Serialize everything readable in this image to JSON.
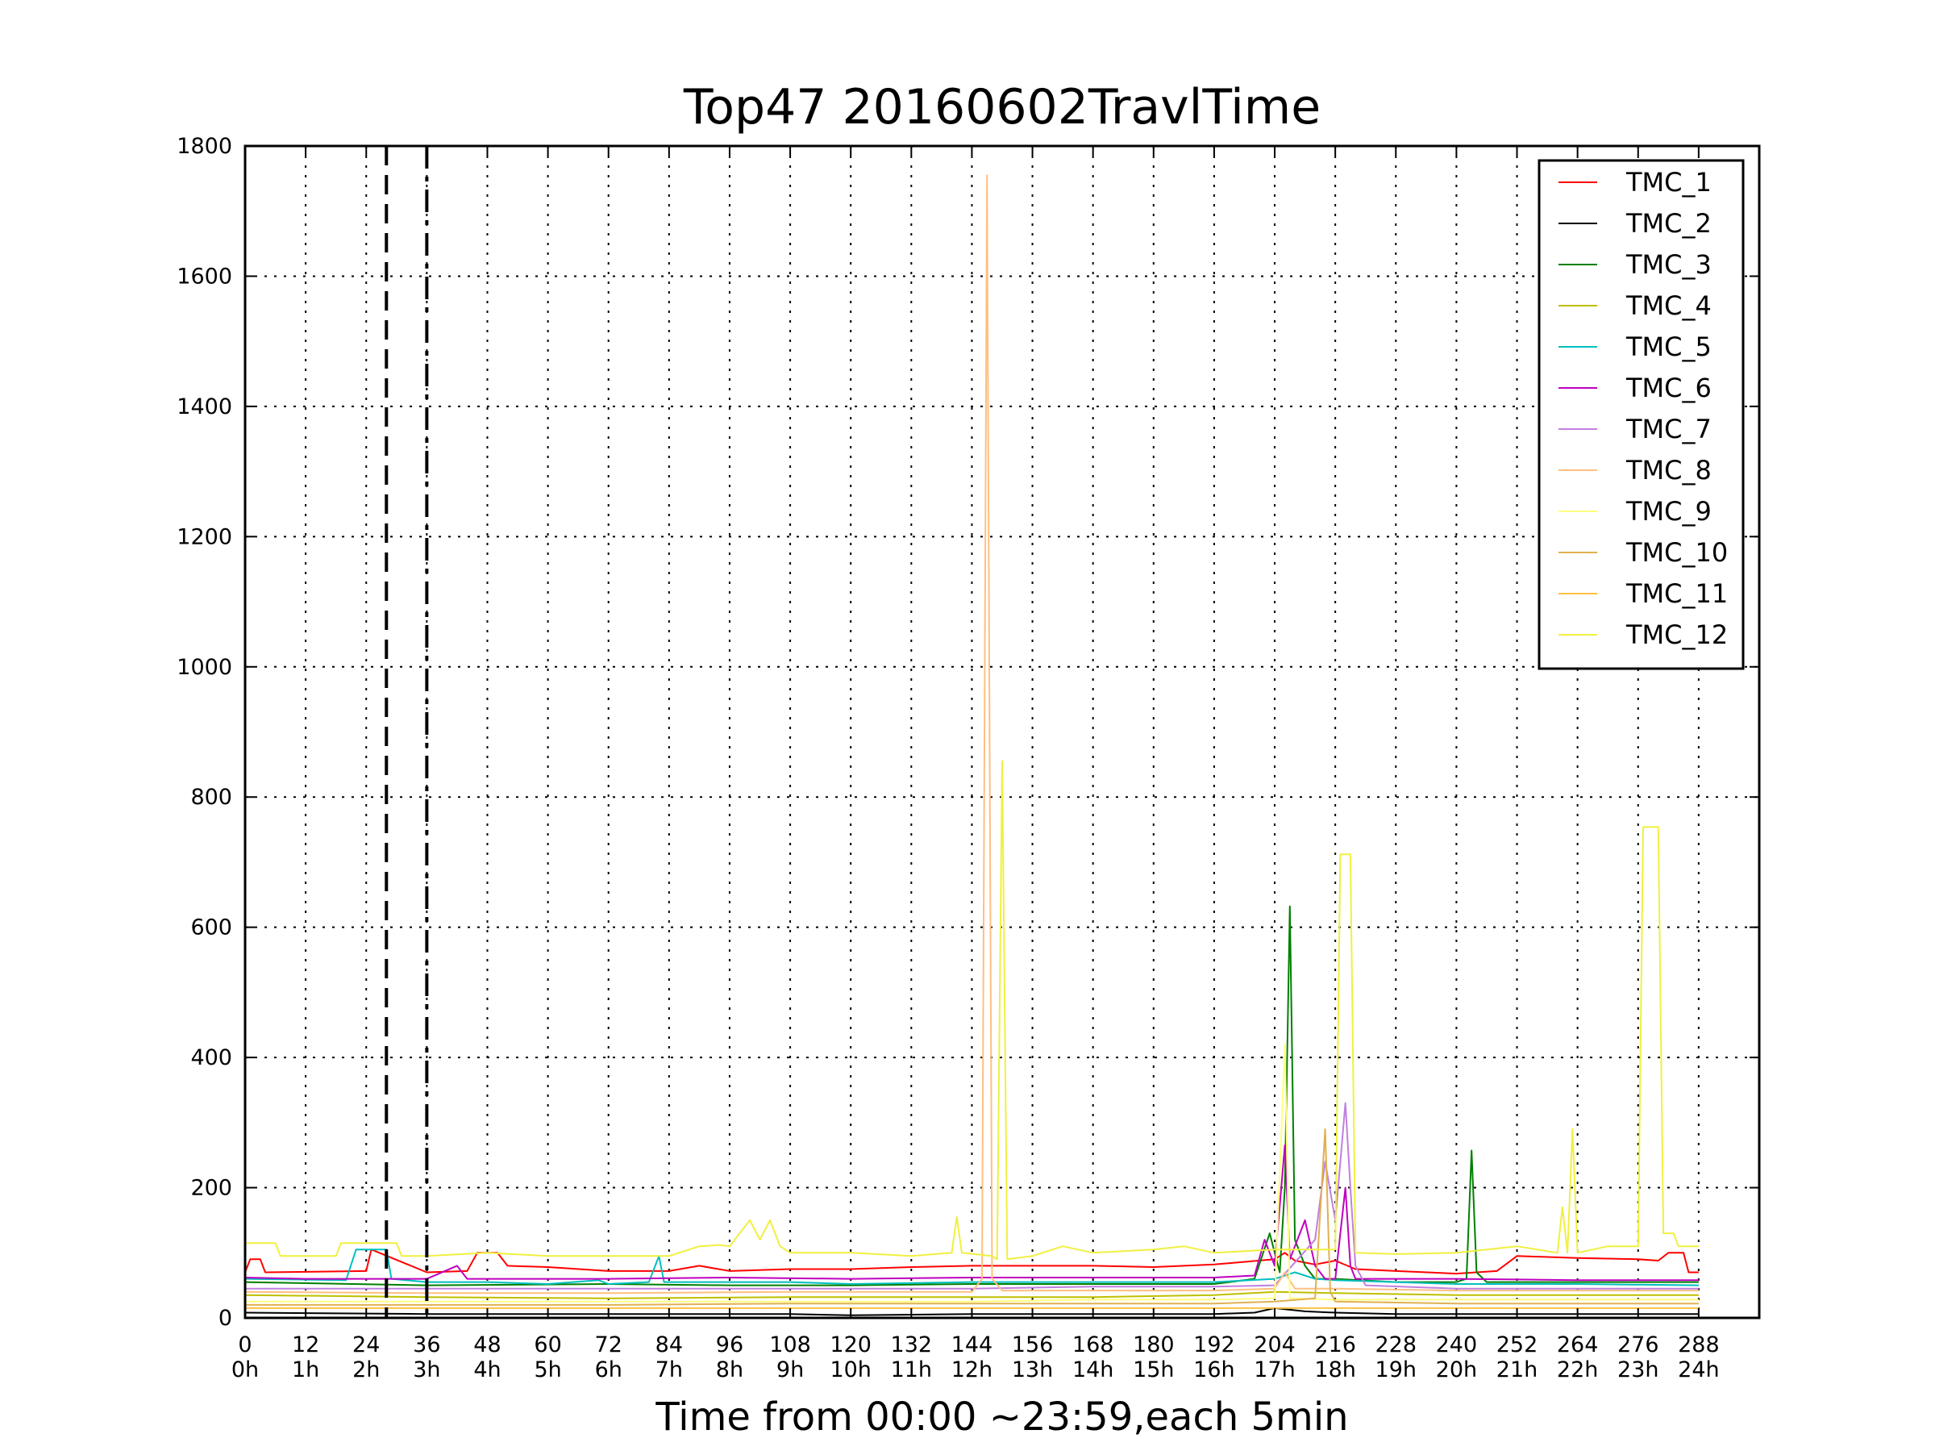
{
  "chart_data": {
    "type": "line",
    "title": "Top47 20160602TravlTime",
    "xlabel": "Time from 00:00 ~23:59,each 5min",
    "ylabel": "",
    "xlim": [
      0,
      300
    ],
    "ylim": [
      0,
      1800
    ],
    "grid": true,
    "legend_position": "top-right",
    "x_ticks": [
      {
        "value": 0,
        "label": "0",
        "sub": "0h"
      },
      {
        "value": 12,
        "label": "12",
        "sub": "1h"
      },
      {
        "value": 24,
        "label": "24",
        "sub": "2h"
      },
      {
        "value": 36,
        "label": "36",
        "sub": "3h"
      },
      {
        "value": 48,
        "label": "48",
        "sub": "4h"
      },
      {
        "value": 60,
        "label": "60",
        "sub": "5h"
      },
      {
        "value": 72,
        "label": "72",
        "sub": "6h"
      },
      {
        "value": 84,
        "label": "84",
        "sub": "7h"
      },
      {
        "value": 96,
        "label": "96",
        "sub": "8h"
      },
      {
        "value": 108,
        "label": "108",
        "sub": "9h"
      },
      {
        "value": 120,
        "label": "120",
        "sub": "10h"
      },
      {
        "value": 132,
        "label": "132",
        "sub": "11h"
      },
      {
        "value": 144,
        "label": "144",
        "sub": "12h"
      },
      {
        "value": 156,
        "label": "156",
        "sub": "13h"
      },
      {
        "value": 168,
        "label": "168",
        "sub": "14h"
      },
      {
        "value": 180,
        "label": "180",
        "sub": "15h"
      },
      {
        "value": 192,
        "label": "192",
        "sub": "16h"
      },
      {
        "value": 204,
        "label": "204",
        "sub": "17h"
      },
      {
        "value": 216,
        "label": "216",
        "sub": "18h"
      },
      {
        "value": 228,
        "label": "228",
        "sub": "19h"
      },
      {
        "value": 240,
        "label": "240",
        "sub": "20h"
      },
      {
        "value": 252,
        "label": "252",
        "sub": "21h"
      },
      {
        "value": 264,
        "label": "264",
        "sub": "22h"
      },
      {
        "value": 276,
        "label": "276",
        "sub": "23h"
      },
      {
        "value": 288,
        "label": "288",
        "sub": "24h"
      }
    ],
    "y_ticks": [
      0,
      200,
      400,
      600,
      800,
      1000,
      1200,
      1400,
      1600,
      1800
    ],
    "vlines": [
      {
        "x": 28,
        "style": "dashed"
      },
      {
        "x": 36,
        "style": "dashdot"
      }
    ],
    "series": [
      {
        "name": "TMC_1",
        "color": "#ff0000",
        "points": [
          [
            0,
            70
          ],
          [
            1,
            90
          ],
          [
            3,
            90
          ],
          [
            4,
            70
          ],
          [
            24,
            72
          ],
          [
            25,
            105
          ],
          [
            36,
            70
          ],
          [
            44,
            72
          ],
          [
            46,
            100
          ],
          [
            50,
            100
          ],
          [
            52,
            80
          ],
          [
            60,
            78
          ],
          [
            72,
            72
          ],
          [
            84,
            72
          ],
          [
            90,
            80
          ],
          [
            96,
            72
          ],
          [
            108,
            75
          ],
          [
            120,
            75
          ],
          [
            132,
            78
          ],
          [
            144,
            80
          ],
          [
            156,
            80
          ],
          [
            168,
            80
          ],
          [
            180,
            78
          ],
          [
            192,
            82
          ],
          [
            204,
            90
          ],
          [
            206,
            100
          ],
          [
            208,
            88
          ],
          [
            212,
            82
          ],
          [
            216,
            88
          ],
          [
            220,
            75
          ],
          [
            228,
            72
          ],
          [
            240,
            68
          ],
          [
            248,
            72
          ],
          [
            252,
            95
          ],
          [
            264,
            92
          ],
          [
            276,
            90
          ],
          [
            280,
            88
          ],
          [
            282,
            100
          ],
          [
            285,
            100
          ],
          [
            286,
            70
          ],
          [
            288,
            70
          ]
        ]
      },
      {
        "name": "TMC_2",
        "color": "#000000",
        "points": [
          [
            0,
            8
          ],
          [
            36,
            6
          ],
          [
            72,
            6
          ],
          [
            108,
            6
          ],
          [
            120,
            4
          ],
          [
            144,
            6
          ],
          [
            168,
            6
          ],
          [
            192,
            6
          ],
          [
            200,
            8
          ],
          [
            204,
            15
          ],
          [
            210,
            10
          ],
          [
            216,
            8
          ],
          [
            228,
            6
          ],
          [
            252,
            6
          ],
          [
            276,
            6
          ],
          [
            288,
            6
          ]
        ]
      },
      {
        "name": "TMC_3",
        "color": "#008000",
        "points": [
          [
            0,
            55
          ],
          [
            36,
            50
          ],
          [
            72,
            52
          ],
          [
            96,
            50
          ],
          [
            120,
            50
          ],
          [
            144,
            52
          ],
          [
            168,
            52
          ],
          [
            192,
            52
          ],
          [
            200,
            60
          ],
          [
            203,
            130
          ],
          [
            205,
            70
          ],
          [
            206,
            200
          ],
          [
            207,
            632
          ],
          [
            208,
            120
          ],
          [
            210,
            80
          ],
          [
            212,
            60
          ],
          [
            216,
            60
          ],
          [
            228,
            55
          ],
          [
            240,
            55
          ],
          [
            242,
            60
          ],
          [
            243,
            257
          ],
          [
            244,
            70
          ],
          [
            246,
            55
          ],
          [
            264,
            55
          ],
          [
            288,
            55
          ]
        ]
      },
      {
        "name": "TMC_4",
        "color": "#bfbf00",
        "points": [
          [
            0,
            35
          ],
          [
            36,
            32
          ],
          [
            72,
            30
          ],
          [
            108,
            32
          ],
          [
            144,
            32
          ],
          [
            168,
            32
          ],
          [
            192,
            35
          ],
          [
            204,
            40
          ],
          [
            216,
            38
          ],
          [
            240,
            35
          ],
          [
            264,
            35
          ],
          [
            288,
            35
          ]
        ]
      },
      {
        "name": "TMC_5",
        "color": "#00bfbf",
        "points": [
          [
            0,
            60
          ],
          [
            20,
            58
          ],
          [
            22,
            105
          ],
          [
            28,
            105
          ],
          [
            29,
            60
          ],
          [
            36,
            55
          ],
          [
            48,
            55
          ],
          [
            60,
            52
          ],
          [
            70,
            58
          ],
          [
            72,
            52
          ],
          [
            80,
            55
          ],
          [
            82,
            95
          ],
          [
            83,
            55
          ],
          [
            96,
            55
          ],
          [
            108,
            55
          ],
          [
            120,
            52
          ],
          [
            144,
            55
          ],
          [
            168,
            55
          ],
          [
            192,
            55
          ],
          [
            204,
            60
          ],
          [
            208,
            70
          ],
          [
            212,
            60
          ],
          [
            216,
            58
          ],
          [
            240,
            52
          ],
          [
            264,
            52
          ],
          [
            288,
            50
          ]
        ]
      },
      {
        "name": "TMC_6",
        "color": "#bf00bf",
        "points": [
          [
            0,
            62
          ],
          [
            12,
            60
          ],
          [
            36,
            60
          ],
          [
            42,
            80
          ],
          [
            44,
            60
          ],
          [
            72,
            60
          ],
          [
            96,
            62
          ],
          [
            120,
            60
          ],
          [
            144,
            62
          ],
          [
            168,
            62
          ],
          [
            192,
            62
          ],
          [
            200,
            65
          ],
          [
            202,
            120
          ],
          [
            204,
            80
          ],
          [
            206,
            265
          ],
          [
            207,
            90
          ],
          [
            210,
            150
          ],
          [
            212,
            80
          ],
          [
            214,
            60
          ],
          [
            216,
            60
          ],
          [
            218,
            200
          ],
          [
            219,
            80
          ],
          [
            220,
            60
          ],
          [
            240,
            60
          ],
          [
            264,
            58
          ],
          [
            288,
            58
          ]
        ]
      },
      {
        "name": "TMC_7",
        "color": "#c080e0",
        "points": [
          [
            0,
            45
          ],
          [
            36,
            45
          ],
          [
            72,
            45
          ],
          [
            108,
            45
          ],
          [
            144,
            45
          ],
          [
            168,
            48
          ],
          [
            192,
            48
          ],
          [
            204,
            50
          ],
          [
            212,
            120
          ],
          [
            214,
            240
          ],
          [
            216,
            150
          ],
          [
            218,
            330
          ],
          [
            219,
            200
          ],
          [
            220,
            80
          ],
          [
            222,
            50
          ],
          [
            240,
            45
          ],
          [
            264,
            45
          ],
          [
            288,
            45
          ]
        ]
      },
      {
        "name": "TMC_8",
        "color": "#ffbf80",
        "points": [
          [
            0,
            40
          ],
          [
            36,
            38
          ],
          [
            72,
            38
          ],
          [
            108,
            40
          ],
          [
            144,
            40
          ],
          [
            146,
            60
          ],
          [
            147,
            1755
          ],
          [
            148,
            60
          ],
          [
            150,
            42
          ],
          [
            168,
            42
          ],
          [
            192,
            42
          ],
          [
            204,
            45
          ],
          [
            206,
            70
          ],
          [
            208,
            45
          ],
          [
            216,
            45
          ],
          [
            240,
            42
          ],
          [
            264,
            42
          ],
          [
            288,
            42
          ]
        ]
      },
      {
        "name": "TMC_9",
        "color": "#ffff80",
        "points": [
          [
            0,
            25
          ],
          [
            36,
            25
          ],
          [
            72,
            25
          ],
          [
            108,
            25
          ],
          [
            144,
            25
          ],
          [
            168,
            28
          ],
          [
            192,
            28
          ],
          [
            204,
            30
          ],
          [
            206,
            420
          ],
          [
            207,
            30
          ],
          [
            216,
            28
          ],
          [
            240,
            28
          ],
          [
            264,
            28
          ],
          [
            288,
            28
          ]
        ]
      },
      {
        "name": "TMC_10",
        "color": "#e0b050",
        "points": [
          [
            0,
            20
          ],
          [
            36,
            20
          ],
          [
            72,
            20
          ],
          [
            108,
            22
          ],
          [
            144,
            22
          ],
          [
            168,
            22
          ],
          [
            192,
            22
          ],
          [
            204,
            25
          ],
          [
            212,
            30
          ],
          [
            214,
            290
          ],
          [
            215,
            40
          ],
          [
            216,
            25
          ],
          [
            240,
            22
          ],
          [
            264,
            22
          ],
          [
            288,
            22
          ]
        ]
      },
      {
        "name": "TMC_11",
        "color": "#ffc040",
        "points": [
          [
            0,
            15
          ],
          [
            36,
            15
          ],
          [
            72,
            15
          ],
          [
            108,
            15
          ],
          [
            144,
            15
          ],
          [
            168,
            15
          ],
          [
            192,
            15
          ],
          [
            216,
            15
          ],
          [
            240,
            15
          ],
          [
            264,
            15
          ],
          [
            288,
            15
          ]
        ]
      },
      {
        "name": "TMC_12",
        "color": "#f0f040",
        "points": [
          [
            0,
            115
          ],
          [
            6,
            115
          ],
          [
            7,
            95
          ],
          [
            18,
            95
          ],
          [
            19,
            115
          ],
          [
            30,
            115
          ],
          [
            31,
            95
          ],
          [
            36,
            95
          ],
          [
            48,
            100
          ],
          [
            60,
            95
          ],
          [
            72,
            95
          ],
          [
            84,
            95
          ],
          [
            90,
            110
          ],
          [
            94,
            112
          ],
          [
            96,
            110
          ],
          [
            100,
            150
          ],
          [
            102,
            120
          ],
          [
            104,
            150
          ],
          [
            106,
            110
          ],
          [
            108,
            100
          ],
          [
            120,
            100
          ],
          [
            132,
            95
          ],
          [
            140,
            100
          ],
          [
            141,
            155
          ],
          [
            142,
            100
          ],
          [
            148,
            95
          ],
          [
            149,
            90
          ],
          [
            150,
            855
          ],
          [
            151,
            90
          ],
          [
            156,
            95
          ],
          [
            162,
            110
          ],
          [
            168,
            100
          ],
          [
            180,
            105
          ],
          [
            186,
            110
          ],
          [
            192,
            100
          ],
          [
            204,
            105
          ],
          [
            216,
            105
          ],
          [
            217,
            712
          ],
          [
            219,
            712
          ],
          [
            220,
            100
          ],
          [
            228,
            98
          ],
          [
            240,
            100
          ],
          [
            252,
            110
          ],
          [
            260,
            100
          ],
          [
            261,
            170
          ],
          [
            262,
            100
          ],
          [
            263,
            290
          ],
          [
            264,
            100
          ],
          [
            270,
            110
          ],
          [
            276,
            110
          ],
          [
            277,
            754
          ],
          [
            280,
            754
          ],
          [
            281,
            130
          ],
          [
            283,
            130
          ],
          [
            284,
            110
          ],
          [
            288,
            110
          ]
        ]
      }
    ]
  }
}
